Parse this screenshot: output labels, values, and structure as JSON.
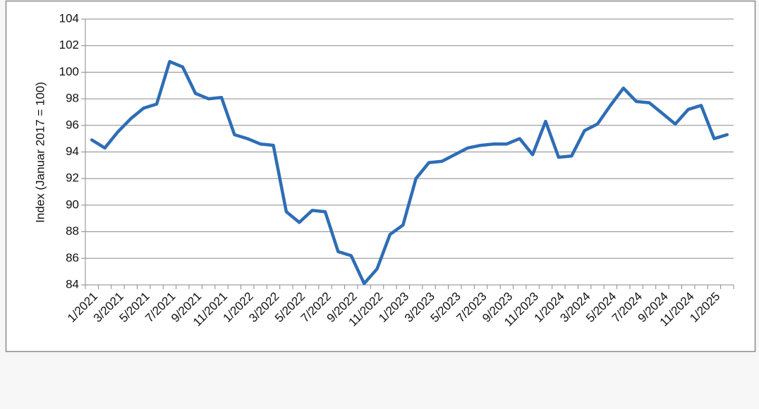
{
  "chart_data": {
    "type": "line",
    "ylabel": "Index (Januar 2017 = 100)",
    "categories": [
      "1/2021",
      null,
      "3/2021",
      null,
      "5/2021",
      null,
      "7/2021",
      null,
      "9/2021",
      null,
      "11/2021",
      null,
      "1/2022",
      null,
      "3/2022",
      null,
      "5/2022",
      null,
      "7/2022",
      null,
      "9/2022",
      null,
      "11/2022",
      null,
      "1/2023",
      null,
      "3/2023",
      null,
      "5/2023",
      null,
      "7/2023",
      null,
      "9/2023",
      null,
      "11/2023",
      null,
      "1/2024",
      null,
      "3/2024",
      null,
      "5/2024",
      null,
      "7/2024",
      null,
      "9/2024",
      null,
      "11/2024",
      null,
      "1/2025",
      null
    ],
    "series": [
      {
        "color": "#2e6db5",
        "values": [
          94.9,
          94.3,
          95.5,
          96.5,
          97.3,
          97.6,
          100.8,
          100.4,
          98.4,
          98.0,
          98.1,
          95.3,
          95.0,
          94.6,
          94.5,
          89.5,
          88.7,
          89.6,
          89.5,
          86.5,
          86.2,
          84.1,
          85.2,
          87.8,
          88.5,
          92.0,
          93.2,
          93.3,
          93.8,
          94.3,
          94.5,
          94.6,
          94.6,
          95.0,
          93.8,
          96.3,
          93.6,
          93.7,
          95.6,
          96.1,
          97.5,
          98.8,
          97.8,
          97.7,
          96.9,
          96.1,
          97.2,
          97.5,
          95.0,
          95.3
        ]
      }
    ],
    "ylim": [
      84,
      104
    ],
    "yticks": [
      84,
      86,
      88,
      90,
      92,
      94,
      96,
      98,
      100,
      102,
      104
    ],
    "grid": true
  }
}
